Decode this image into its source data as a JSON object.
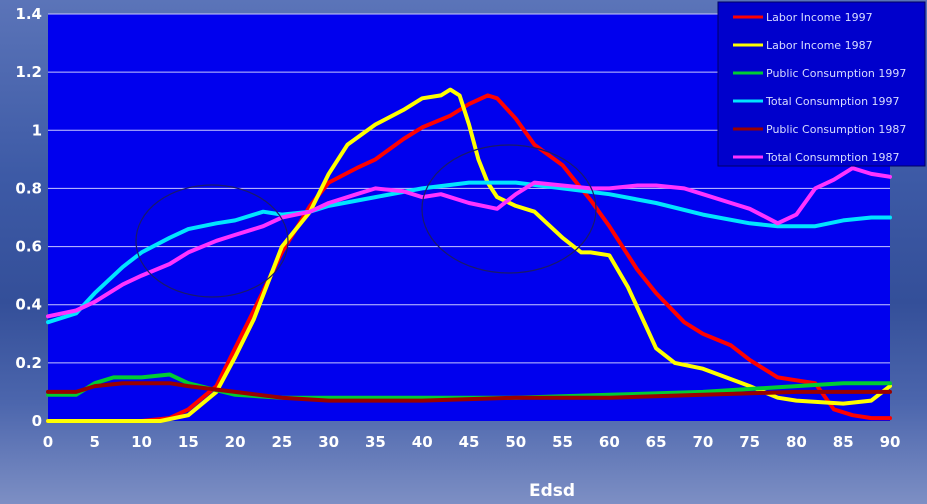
{
  "chart_data": {
    "type": "line",
    "title": "",
    "xlabel": "Edsd",
    "ylabel": "",
    "xlim": [
      0,
      90
    ],
    "ylim": [
      0,
      1.4
    ],
    "x_ticks": [
      "0",
      "5",
      "10",
      "15",
      "20",
      "25",
      "30",
      "35",
      "40",
      "45",
      "50",
      "55",
      "60",
      "65",
      "70",
      "75",
      "80",
      "85",
      "90"
    ],
    "y_ticks": [
      "0",
      "0.2",
      "0.4",
      "0.6",
      "0.8",
      "1",
      "1.2",
      "1.4"
    ],
    "grid": "horizontal",
    "legend_position": "top-right",
    "background_color": "#0000ee",
    "series": [
      {
        "name": "Labor Income 1997",
        "color": "#ff0000",
        "x": [
          0,
          10,
          13,
          15,
          18,
          20,
          22,
          25,
          28,
          30,
          33,
          35,
          38,
          40,
          43,
          45,
          47,
          48,
          50,
          52,
          55,
          58,
          60,
          63,
          65,
          68,
          70,
          73,
          75,
          78,
          80,
          82,
          84,
          86,
          88,
          90
        ],
        "y": [
          0,
          0,
          0.01,
          0.04,
          0.12,
          0.25,
          0.38,
          0.58,
          0.74,
          0.82,
          0.87,
          0.9,
          0.97,
          1.01,
          1.05,
          1.09,
          1.12,
          1.11,
          1.04,
          0.95,
          0.88,
          0.76,
          0.67,
          0.52,
          0.44,
          0.34,
          0.3,
          0.26,
          0.21,
          0.15,
          0.14,
          0.13,
          0.04,
          0.02,
          0.01,
          0.01
        ]
      },
      {
        "name": "Labor Income 1987",
        "color": "#ffff00",
        "x": [
          0,
          12,
          15,
          18,
          20,
          22,
          25,
          28,
          30,
          32,
          35,
          38,
          40,
          42,
          43,
          44,
          45,
          46,
          47,
          48,
          50,
          52,
          55,
          57,
          58,
          60,
          62,
          64,
          65,
          67,
          70,
          75,
          78,
          80,
          85,
          88,
          90
        ],
        "y": [
          0,
          0,
          0.02,
          0.1,
          0.22,
          0.35,
          0.6,
          0.72,
          0.85,
          0.95,
          1.02,
          1.07,
          1.11,
          1.12,
          1.14,
          1.12,
          1.02,
          0.9,
          0.82,
          0.77,
          0.74,
          0.72,
          0.63,
          0.58,
          0.58,
          0.57,
          0.46,
          0.32,
          0.25,
          0.2,
          0.18,
          0.12,
          0.08,
          0.07,
          0.06,
          0.07,
          0.12
        ]
      },
      {
        "name": "Public Consumption 1997",
        "color": "#00cc33",
        "x": [
          0,
          3,
          5,
          7,
          10,
          13,
          15,
          20,
          25,
          30,
          40,
          50,
          60,
          70,
          80,
          85,
          90
        ],
        "y": [
          0.09,
          0.09,
          0.13,
          0.15,
          0.15,
          0.16,
          0.13,
          0.09,
          0.08,
          0.08,
          0.08,
          0.08,
          0.09,
          0.1,
          0.12,
          0.13,
          0.13
        ]
      },
      {
        "name": "Total Consumption 1997",
        "color": "#00e5ff",
        "x": [
          0,
          3,
          5,
          8,
          10,
          13,
          15,
          18,
          20,
          23,
          25,
          28,
          30,
          35,
          40,
          45,
          48,
          50,
          55,
          60,
          65,
          70,
          75,
          78,
          80,
          82,
          85,
          88,
          90
        ],
        "y": [
          0.34,
          0.37,
          0.44,
          0.53,
          0.58,
          0.63,
          0.66,
          0.68,
          0.69,
          0.72,
          0.71,
          0.72,
          0.74,
          0.77,
          0.8,
          0.82,
          0.82,
          0.82,
          0.8,
          0.78,
          0.75,
          0.71,
          0.68,
          0.67,
          0.67,
          0.67,
          0.69,
          0.7,
          0.7
        ]
      },
      {
        "name": "Public Consumption 1987",
        "color": "#990000",
        "x": [
          0,
          3,
          5,
          8,
          10,
          13,
          15,
          20,
          25,
          30,
          40,
          50,
          60,
          70,
          80,
          85,
          90
        ],
        "y": [
          0.1,
          0.1,
          0.12,
          0.13,
          0.13,
          0.13,
          0.12,
          0.1,
          0.08,
          0.07,
          0.07,
          0.08,
          0.08,
          0.09,
          0.1,
          0.1,
          0.1
        ]
      },
      {
        "name": "Total Consumption 1987",
        "color": "#ff33ff",
        "x": [
          0,
          3,
          5,
          8,
          10,
          13,
          15,
          18,
          20,
          23,
          25,
          28,
          30,
          33,
          35,
          38,
          40,
          42,
          45,
          48,
          50,
          52,
          55,
          58,
          60,
          63,
          65,
          68,
          70,
          73,
          75,
          78,
          80,
          82,
          84,
          86,
          88,
          90
        ],
        "y": [
          0.36,
          0.38,
          0.41,
          0.47,
          0.5,
          0.54,
          0.58,
          0.62,
          0.64,
          0.67,
          0.7,
          0.72,
          0.75,
          0.78,
          0.8,
          0.79,
          0.77,
          0.78,
          0.75,
          0.73,
          0.78,
          0.82,
          0.81,
          0.8,
          0.8,
          0.81,
          0.81,
          0.8,
          0.78,
          0.75,
          0.73,
          0.68,
          0.71,
          0.8,
          0.83,
          0.87,
          0.85,
          0.84
        ]
      }
    ]
  }
}
